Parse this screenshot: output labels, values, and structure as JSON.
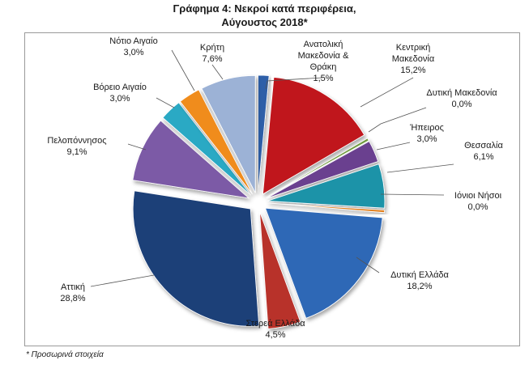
{
  "title_line1": "Γράφημα 4: Νεκροί κατά περιφέρεια,",
  "title_line2": "Αύγουστος 2018*",
  "footnote": "* Προσωρινά στοιχεία",
  "chart_data": {
    "type": "pie",
    "title": "Γράφημα 4: Νεκροί κατά περιφέρεια, Αύγουστος 2018*",
    "exploded": true,
    "slices": [
      {
        "label": "Ανατολική Μακεδονία & Θράκη",
        "value": 1.5,
        "value_label": "1,5%",
        "color": "#2e5fa8"
      },
      {
        "label": "Κεντρική Μακεδονία",
        "value": 15.2,
        "value_label": "15,2%",
        "color": "#c0141a"
      },
      {
        "label": "Δυτική Μακεδονία",
        "value": 0.0,
        "value_label": "0,0%",
        "color": "#6e9a3a"
      },
      {
        "label": "Ήπειρος",
        "value": 3.0,
        "value_label": "3,0%",
        "color": "#6a3f8f"
      },
      {
        "label": "Θεσσαλία",
        "value": 6.1,
        "value_label": "6,1%",
        "color": "#1f93a8"
      },
      {
        "label": "Ιόνιοι Νήσοι",
        "value": 0.0,
        "value_label": "0,0%",
        "color": "#e07f1f"
      },
      {
        "label": "Δυτική Ελλάδα",
        "value": 18.2,
        "value_label": "18,2%",
        "color": "#2f68b6"
      },
      {
        "label": "Στερεά Ελλάδα",
        "value": 4.5,
        "value_label": "4,5%",
        "color": "#b8312c"
      },
      {
        "label": "Αττική",
        "value": 28.8,
        "value_label": "28,8%",
        "color": "#1f3f78"
      },
      {
        "label": "Πελοπόννησος",
        "value": 9.1,
        "value_label": "9,1%",
        "color": "#7b5aa6"
      },
      {
        "label": "Βόρειο Αιγαίο",
        "value": 3.0,
        "value_label": "3,0%",
        "color": "#2aa9c4"
      },
      {
        "label": "Νότιο Αιγαίο",
        "value": 3.0,
        "value_label": "3,0%",
        "color": "#f08c1e"
      },
      {
        "label": "Κρήτη",
        "value": 7.6,
        "value_label": "7,6%",
        "color": "#9cb2d6"
      }
    ]
  }
}
